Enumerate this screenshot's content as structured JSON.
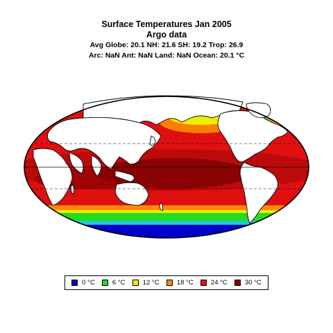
{
  "title": "Surface Temperatures Jan 2005",
  "subtitle": "Argo data",
  "stats_line1": "Avg Globe: 20.1  NH: 21.6  SH: 19.2  Trop: 26.9",
  "stats_line2": "Arc: NaN  Ant: NaN  Land: NaN Ocean: 20.1 °C",
  "legend": [
    {
      "label": "0 °C",
      "color": "#0000cd"
    },
    {
      "label": "6 °C",
      "color": "#22dd22"
    },
    {
      "label": "12 °C",
      "color": "#eeee00"
    },
    {
      "label": "18 °C",
      "color": "#ff8c00"
    },
    {
      "label": "24 °C",
      "color": "#ee1111"
    },
    {
      "label": "30 °C",
      "color": "#880000"
    }
  ],
  "colors": {
    "ocean_warm": "#dd1111",
    "ocean_hot": "#8b0000",
    "land": "#ffffff",
    "outline": "#000000"
  }
}
